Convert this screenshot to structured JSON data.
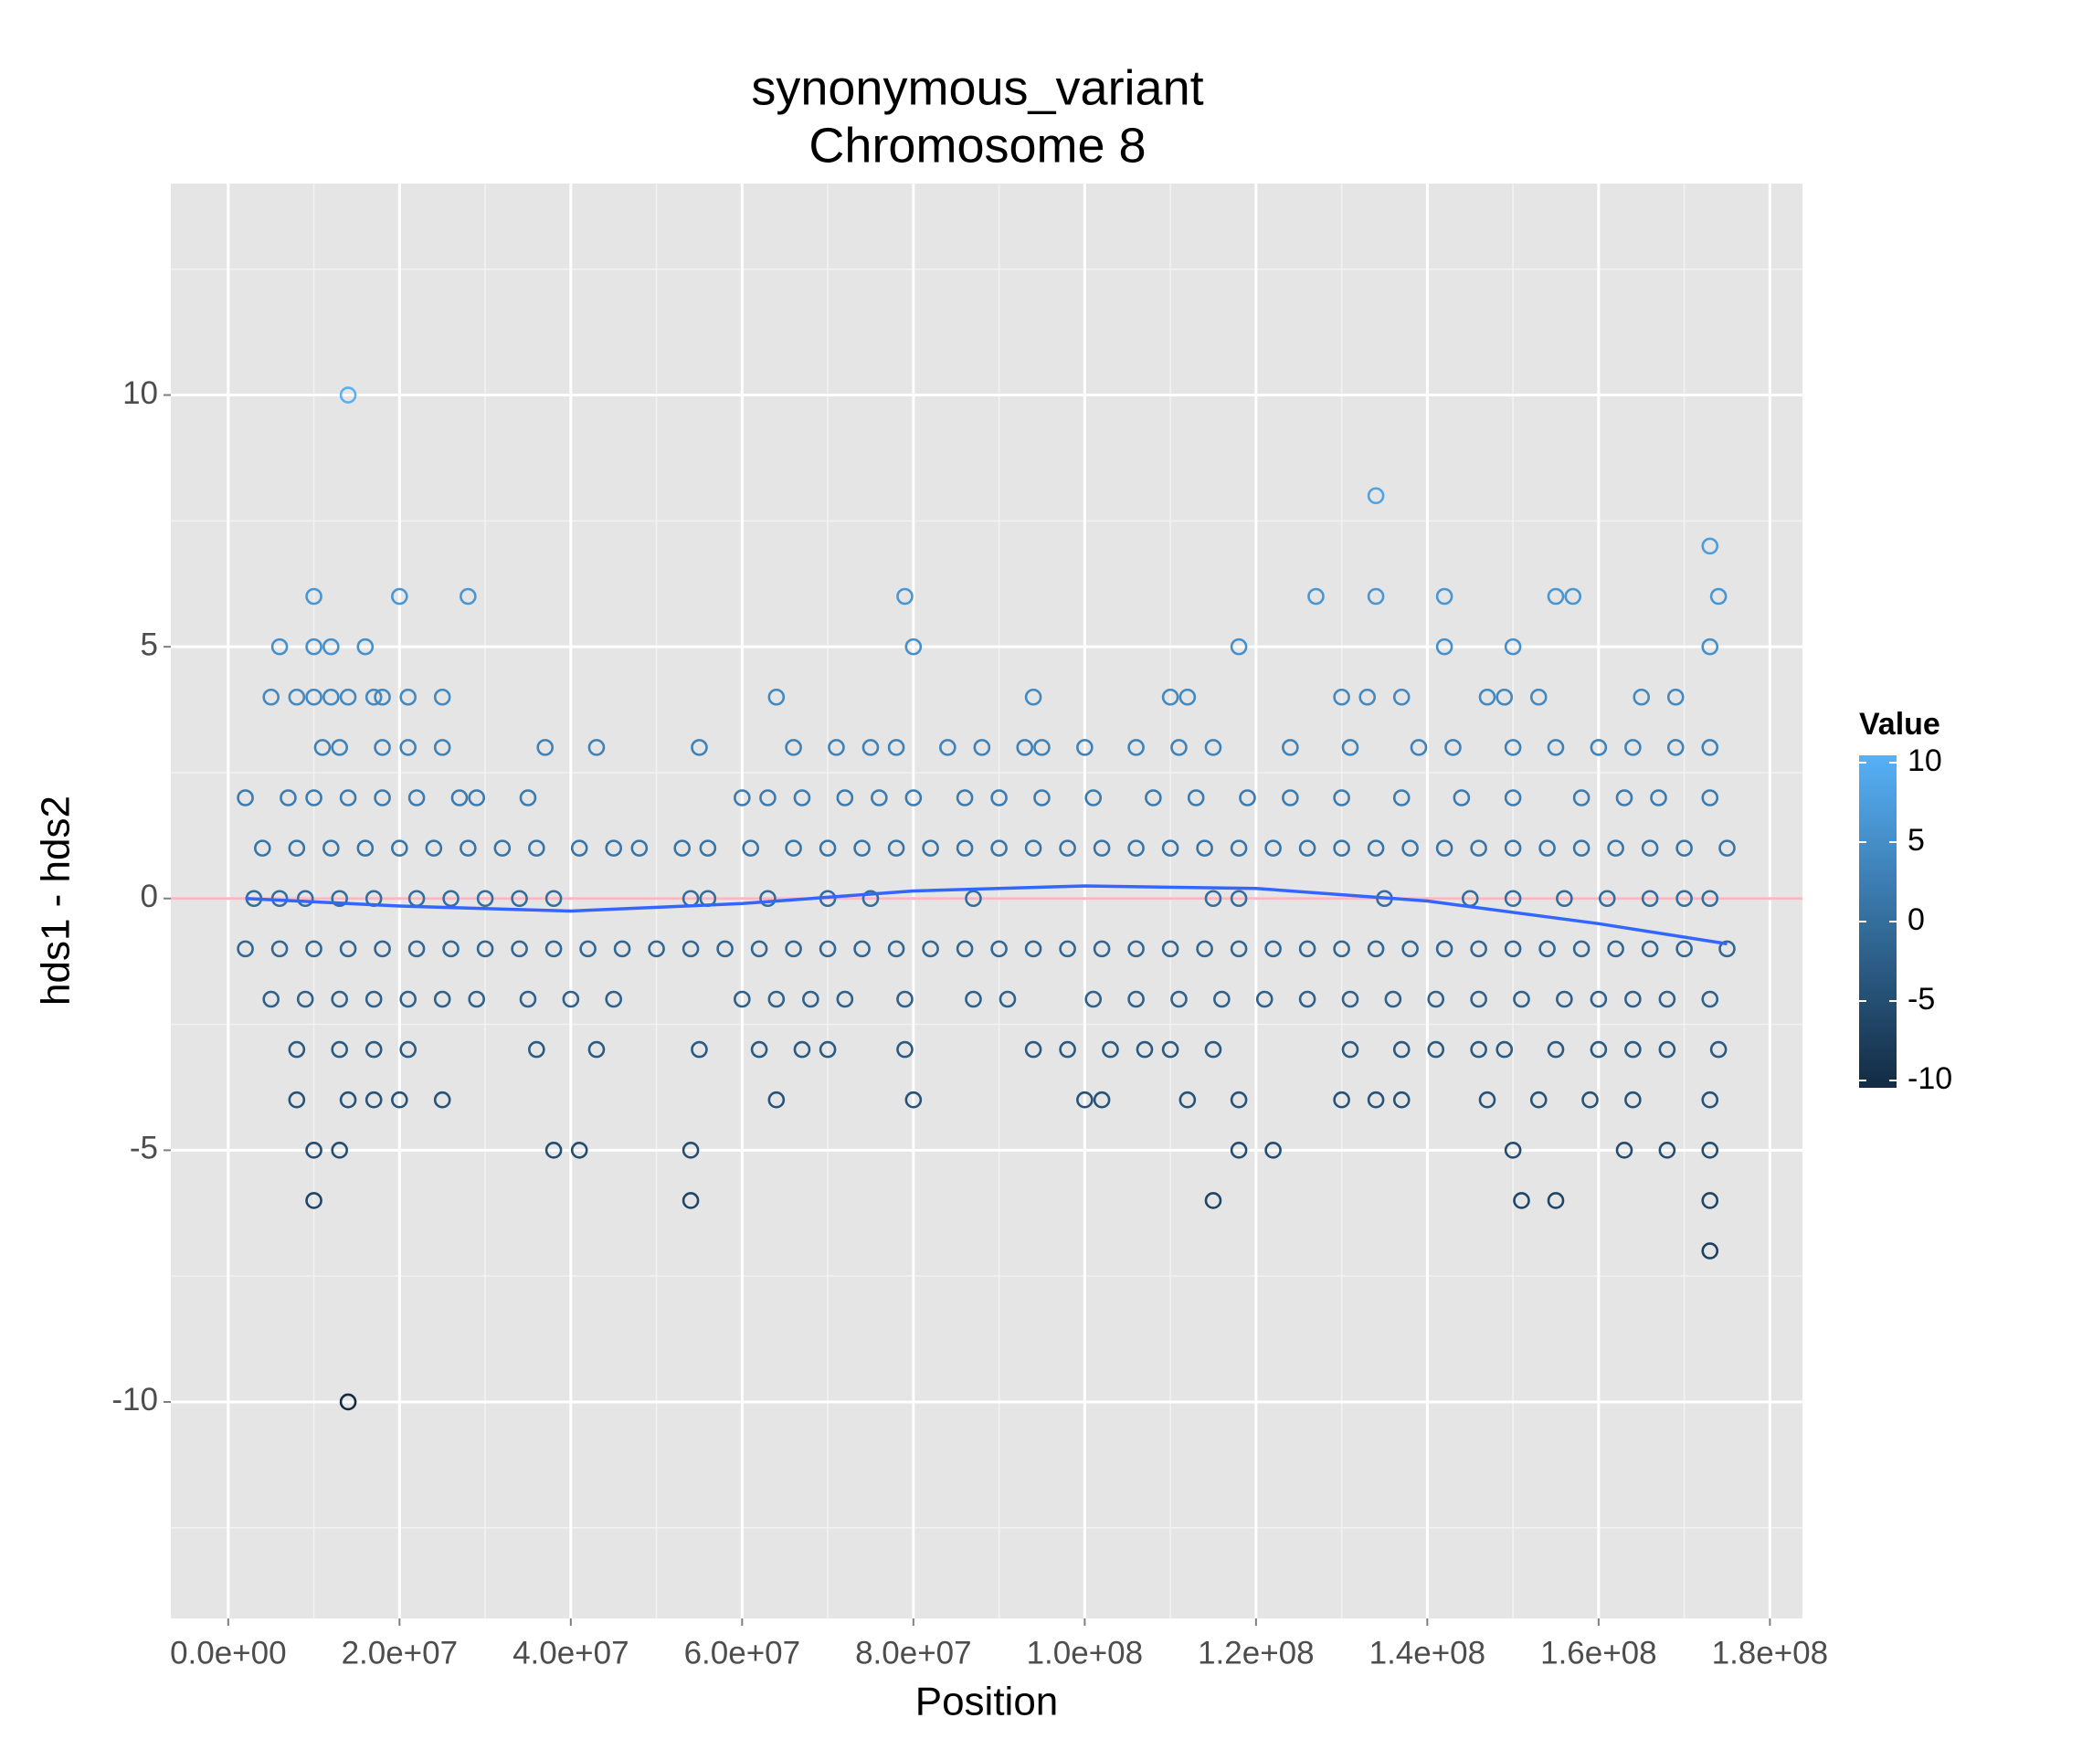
{
  "chart_data": {
    "type": "scatter",
    "title": "synonymous_variant",
    "subtitle": "Chromosome 8",
    "x_label": "Position",
    "y_label": "hds1 - hds2",
    "xlim": [
      -6700000.0,
      183800000.0
    ],
    "ylim": [
      -14.3,
      14.2
    ],
    "xticks": [
      {
        "value": 0,
        "label": "0.0e+00"
      },
      {
        "value": 20000000.0,
        "label": "2.0e+07"
      },
      {
        "value": 40000000.0,
        "label": "4.0e+07"
      },
      {
        "value": 60000000.0,
        "label": "6.0e+07"
      },
      {
        "value": 80000000.0,
        "label": "8.0e+07"
      },
      {
        "value": 100000000.0,
        "label": "1.0e+08"
      },
      {
        "value": 120000000.0,
        "label": "1.2e+08"
      },
      {
        "value": 140000000.0,
        "label": "1.4e+08"
      },
      {
        "value": 160000000.0,
        "label": "1.6e+08"
      },
      {
        "value": 180000000.0,
        "label": "1.8e+08"
      }
    ],
    "yticks": [
      -10,
      -5,
      0,
      5,
      10
    ],
    "grid": true,
    "hline": {
      "y": 0,
      "color": "#ffb6c1"
    },
    "color_scale": {
      "title": "Value",
      "low": "#132b43",
      "high": "#56b1f7",
      "lim": [
        -10,
        10
      ],
      "ticks": [
        -10,
        -5,
        0,
        5,
        10
      ]
    },
    "x": [
      14000000.0,
      134000000.0,
      173000000.0,
      10000000.0,
      20000000.0,
      28000000.0,
      79000000.0,
      127000000.0,
      134000000.0,
      142000000.0,
      155000000.0,
      157000000.0,
      174000000.0,
      6000000.0,
      10000000.0,
      12000000.0,
      16000000.0,
      80000000.0,
      118000000.0,
      142000000.0,
      150000000.0,
      173000000.0,
      5000000.0,
      8000000.0,
      10000000.0,
      12000000.0,
      14000000.0,
      17000000.0,
      18000000.0,
      21000000.0,
      25000000.0,
      64000000.0,
      94000000.0,
      110000000.0,
      112000000.0,
      130000000.0,
      133000000.0,
      137000000.0,
      147000000.0,
      149000000.0,
      153000000.0,
      165000000.0,
      169000000.0,
      11000000.0,
      13000000.0,
      18000000.0,
      21000000.0,
      25000000.0,
      37000000.0,
      43000000.0,
      55000000.0,
      66000000.0,
      71000000.0,
      75000000.0,
      78000000.0,
      84000000.0,
      88000000.0,
      93000000.0,
      95000000.0,
      100000000.0,
      106000000.0,
      111000000.0,
      115000000.0,
      124000000.0,
      131000000.0,
      139000000.0,
      143000000.0,
      150000000.0,
      155000000.0,
      160000000.0,
      164000000.0,
      169000000.0,
      173000000.0,
      2000000.0,
      7000000.0,
      10000000.0,
      14000000.0,
      18000000.0,
      22000000.0,
      27000000.0,
      29000000.0,
      35000000.0,
      60000000.0,
      63000000.0,
      67000000.0,
      72000000.0,
      76000000.0,
      80000000.0,
      86000000.0,
      90000000.0,
      95000000.0,
      101000000.0,
      108000000.0,
      113000000.0,
      119000000.0,
      124000000.0,
      130000000.0,
      137000000.0,
      144000000.0,
      150000000.0,
      158000000.0,
      163000000.0,
      167000000.0,
      173000000.0,
      4000000.0,
      8000000.0,
      12000000.0,
      16000000.0,
      20000000.0,
      24000000.0,
      28000000.0,
      32000000.0,
      36000000.0,
      41000000.0,
      45000000.0,
      48000000.0,
      53000000.0,
      56000000.0,
      61000000.0,
      66000000.0,
      70000000.0,
      74000000.0,
      78000000.0,
      82000000.0,
      86000000.0,
      90000000.0,
      94000000.0,
      98000000.0,
      102000000.0,
      106000000.0,
      110000000.0,
      114000000.0,
      118000000.0,
      122000000.0,
      126000000.0,
      130000000.0,
      134000000.0,
      138000000.0,
      142000000.0,
      146000000.0,
      150000000.0,
      154000000.0,
      158000000.0,
      162000000.0,
      166000000.0,
      170000000.0,
      175000000.0,
      3000000.0,
      6000000.0,
      9000000.0,
      13000000.0,
      17000000.0,
      22000000.0,
      26000000.0,
      30000000.0,
      34000000.0,
      38000000.0,
      54000000.0,
      56000000.0,
      63000000.0,
      70000000.0,
      75000000.0,
      87000000.0,
      115000000.0,
      118000000.0,
      135000000.0,
      145000000.0,
      150000000.0,
      156000000.0,
      161000000.0,
      166000000.0,
      170000000.0,
      173000000.0,
      2000000.0,
      6000000.0,
      10000000.0,
      14000000.0,
      18000000.0,
      22000000.0,
      26000000.0,
      30000000.0,
      34000000.0,
      38000000.0,
      42000000.0,
      46000000.0,
      50000000.0,
      54000000.0,
      58000000.0,
      62000000.0,
      66000000.0,
      70000000.0,
      74000000.0,
      78000000.0,
      82000000.0,
      86000000.0,
      90000000.0,
      94000000.0,
      98000000.0,
      102000000.0,
      106000000.0,
      110000000.0,
      114000000.0,
      118000000.0,
      122000000.0,
      126000000.0,
      130000000.0,
      134000000.0,
      138000000.0,
      142000000.0,
      146000000.0,
      150000000.0,
      154000000.0,
      158000000.0,
      162000000.0,
      166000000.0,
      170000000.0,
      175000000.0,
      5000000.0,
      9000000.0,
      13000000.0,
      17000000.0,
      21000000.0,
      25000000.0,
      29000000.0,
      35000000.0,
      40000000.0,
      45000000.0,
      60000000.0,
      64000000.0,
      68000000.0,
      72000000.0,
      79000000.0,
      87000000.0,
      91000000.0,
      101000000.0,
      106000000.0,
      111000000.0,
      116000000.0,
      121000000.0,
      126000000.0,
      131000000.0,
      136000000.0,
      141000000.0,
      146000000.0,
      151000000.0,
      156000000.0,
      160000000.0,
      164000000.0,
      168000000.0,
      173000000.0,
      8000000.0,
      13000000.0,
      17000000.0,
      21000000.0,
      36000000.0,
      43000000.0,
      55000000.0,
      62000000.0,
      67000000.0,
      70000000.0,
      79000000.0,
      94000000.0,
      98000000.0,
      103000000.0,
      107000000.0,
      110000000.0,
      115000000.0,
      131000000.0,
      137000000.0,
      141000000.0,
      146000000.0,
      149000000.0,
      155000000.0,
      160000000.0,
      164000000.0,
      168000000.0,
      174000000.0,
      8000000.0,
      14000000.0,
      17000000.0,
      20000000.0,
      25000000.0,
      64000000.0,
      80000000.0,
      100000000.0,
      102000000.0,
      112000000.0,
      118000000.0,
      130000000.0,
      134000000.0,
      137000000.0,
      147000000.0,
      153000000.0,
      159000000.0,
      164000000.0,
      173000000.0,
      10000000.0,
      13000000.0,
      38000000.0,
      41000000.0,
      54000000.0,
      118000000.0,
      122000000.0,
      150000000.0,
      163000000.0,
      168000000.0,
      173000000.0,
      10000000.0,
      54000000.0,
      115000000.0,
      151000000.0,
      155000000.0,
      173000000.0,
      173000000.0,
      14000000.0
    ],
    "values": [
      10,
      8,
      7,
      6,
      6,
      6,
      6,
      6,
      6,
      6,
      6,
      6,
      6,
      5,
      5,
      5,
      5,
      5,
      5,
      5,
      5,
      5,
      4,
      4,
      4,
      4,
      4,
      4,
      4,
      4,
      4,
      4,
      4,
      4,
      4,
      4,
      4,
      4,
      4,
      4,
      4,
      4,
      4,
      3,
      3,
      3,
      3,
      3,
      3,
      3,
      3,
      3,
      3,
      3,
      3,
      3,
      3,
      3,
      3,
      3,
      3,
      3,
      3,
      3,
      3,
      3,
      3,
      3,
      3,
      3,
      3,
      3,
      3,
      2,
      2,
      2,
      2,
      2,
      2,
      2,
      2,
      2,
      2,
      2,
      2,
      2,
      2,
      2,
      2,
      2,
      2,
      2,
      2,
      2,
      2,
      2,
      2,
      2,
      2,
      2,
      2,
      2,
      2,
      2,
      1,
      1,
      1,
      1,
      1,
      1,
      1,
      1,
      1,
      1,
      1,
      1,
      1,
      1,
      1,
      1,
      1,
      1,
      1,
      1,
      1,
      1,
      1,
      1,
      1,
      1,
      1,
      1,
      1,
      1,
      1,
      1,
      1,
      1,
      1,
      1,
      1,
      1,
      1,
      1,
      1,
      1,
      1,
      0,
      0,
      0,
      0,
      0,
      0,
      0,
      0,
      0,
      0,
      0,
      0,
      0,
      0,
      0,
      0,
      0,
      0,
      0,
      0,
      0,
      0,
      0,
      0,
      0,
      0,
      -1,
      -1,
      -1,
      -1,
      -1,
      -1,
      -1,
      -1,
      -1,
      -1,
      -1,
      -1,
      -1,
      -1,
      -1,
      -1,
      -1,
      -1,
      -1,
      -1,
      -1,
      -1,
      -1,
      -1,
      -1,
      -1,
      -1,
      -1,
      -1,
      -1,
      -1,
      -1,
      -1,
      -1,
      -1,
      -1,
      -1,
      -1,
      -1,
      -1,
      -1,
      -1,
      -1,
      -1,
      -2,
      -2,
      -2,
      -2,
      -2,
      -2,
      -2,
      -2,
      -2,
      -2,
      -2,
      -2,
      -2,
      -2,
      -2,
      -2,
      -2,
      -2,
      -2,
      -2,
      -2,
      -2,
      -2,
      -2,
      -2,
      -2,
      -2,
      -2,
      -2,
      -2,
      -2,
      -2,
      -2,
      -3,
      -3,
      -3,
      -3,
      -3,
      -3,
      -3,
      -3,
      -3,
      -3,
      -3,
      -3,
      -3,
      -3,
      -3,
      -3,
      -3,
      -3,
      -3,
      -3,
      -3,
      -3,
      -3,
      -3,
      -3,
      -3,
      -3,
      -4,
      -4,
      -4,
      -4,
      -4,
      -4,
      -4,
      -4,
      -4,
      -4,
      -4,
      -4,
      -4,
      -4,
      -4,
      -4,
      -4,
      -4,
      -4,
      -5,
      -5,
      -5,
      -5,
      -5,
      -5,
      -5,
      -5,
      -5,
      -5,
      -5,
      -6,
      -6,
      -6,
      -6,
      -6,
      -6,
      -7,
      -10
    ],
    "smooth": {
      "color": "#3366ff",
      "x": [
        2000000.0,
        20000000.0,
        40000000.0,
        60000000.0,
        80000000.0,
        100000000.0,
        120000000.0,
        140000000.0,
        160000000.0,
        175000000.0
      ],
      "values": [
        0.0,
        -0.15,
        -0.25,
        -0.1,
        0.15,
        0.25,
        0.2,
        -0.05,
        -0.5,
        -0.9
      ]
    }
  }
}
